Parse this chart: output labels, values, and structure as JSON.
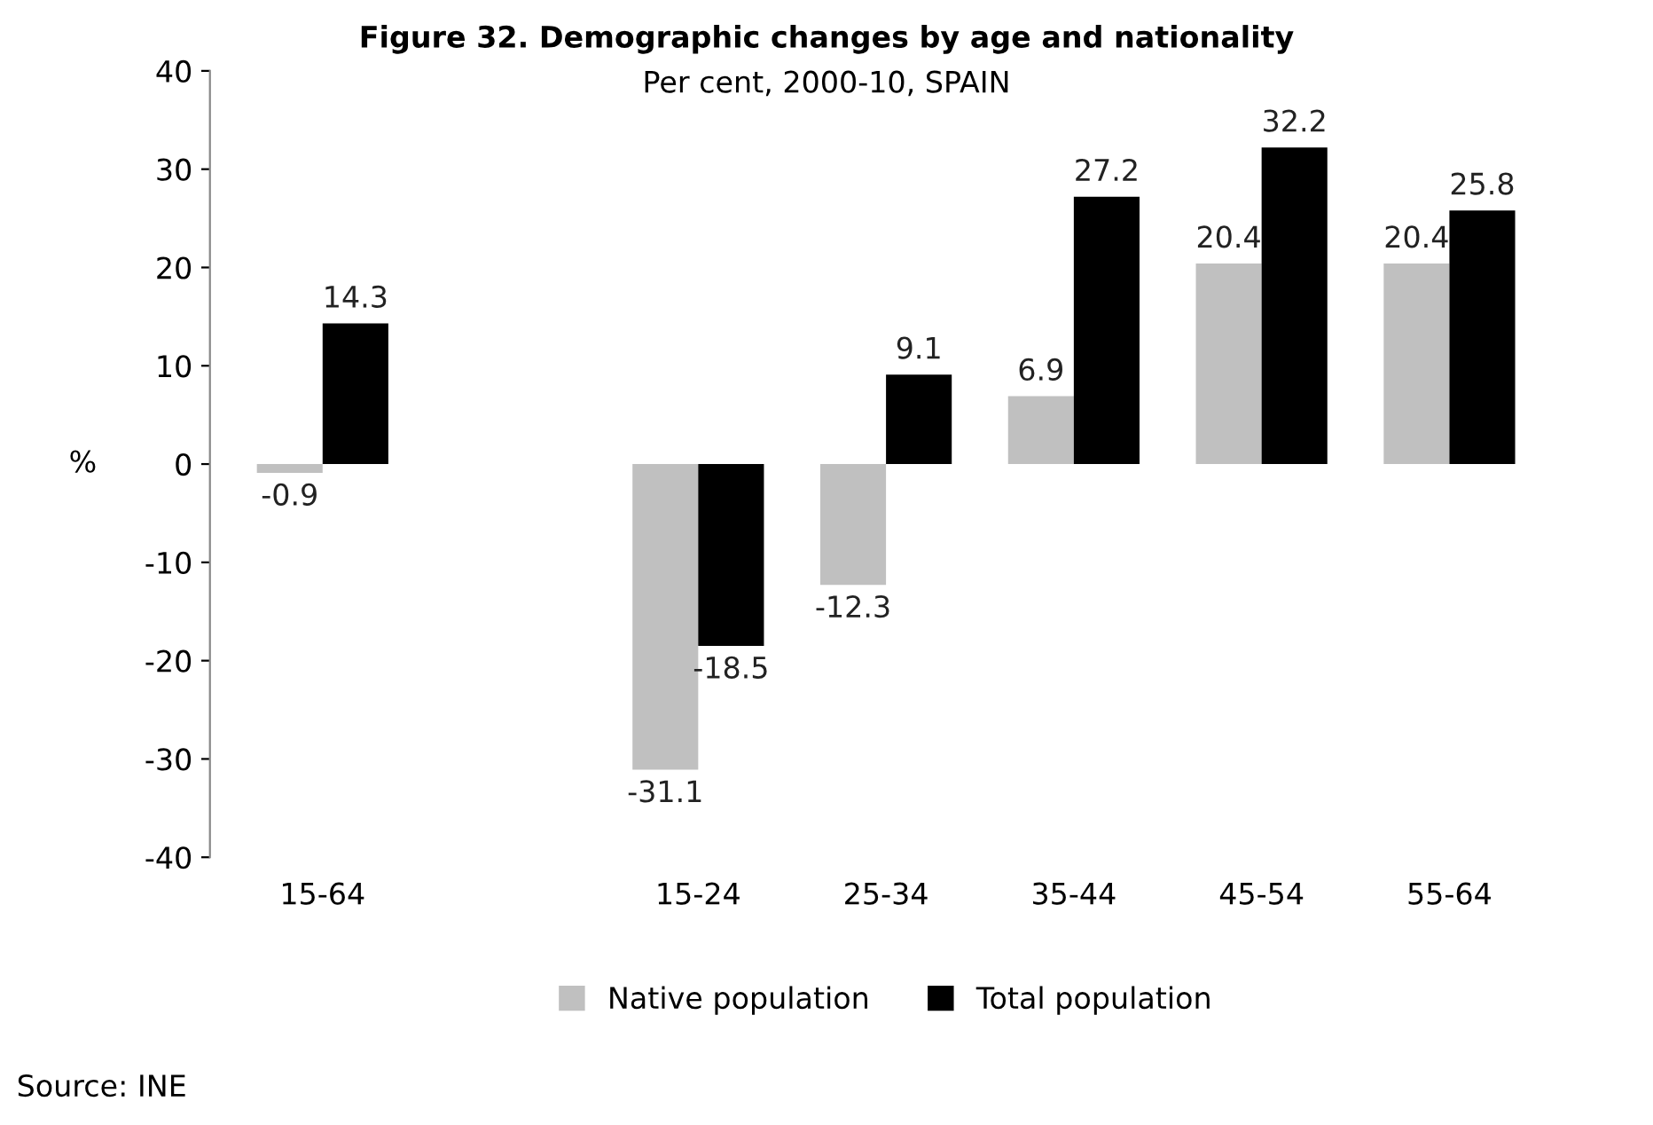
{
  "chart_data": {
    "type": "bar",
    "title": "Figure 32. Demographic changes by age and nationality",
    "subtitle": "Per cent, 2000-10, SPAIN",
    "ylabel": "%",
    "categories": [
      "15-64",
      null,
      "15-24",
      "25-34",
      "35-44",
      "45-54",
      "55-64"
    ],
    "series": [
      {
        "name": "Native population",
        "color": "#c0c0c0",
        "values": [
          -0.9,
          null,
          -31.1,
          -12.3,
          6.9,
          20.4,
          20.4
        ]
      },
      {
        "name": "Total population",
        "color": "#000000",
        "values": [
          14.3,
          null,
          -18.5,
          9.1,
          27.2,
          32.2,
          25.8
        ]
      }
    ],
    "ylim": [
      -40,
      40
    ],
    "yticks": [
      -40,
      -30,
      -20,
      -10,
      0,
      10,
      20,
      30,
      40
    ],
    "grid": false,
    "legend": "bottom",
    "data_labels": true,
    "annotations": [
      "Source: INE"
    ]
  }
}
